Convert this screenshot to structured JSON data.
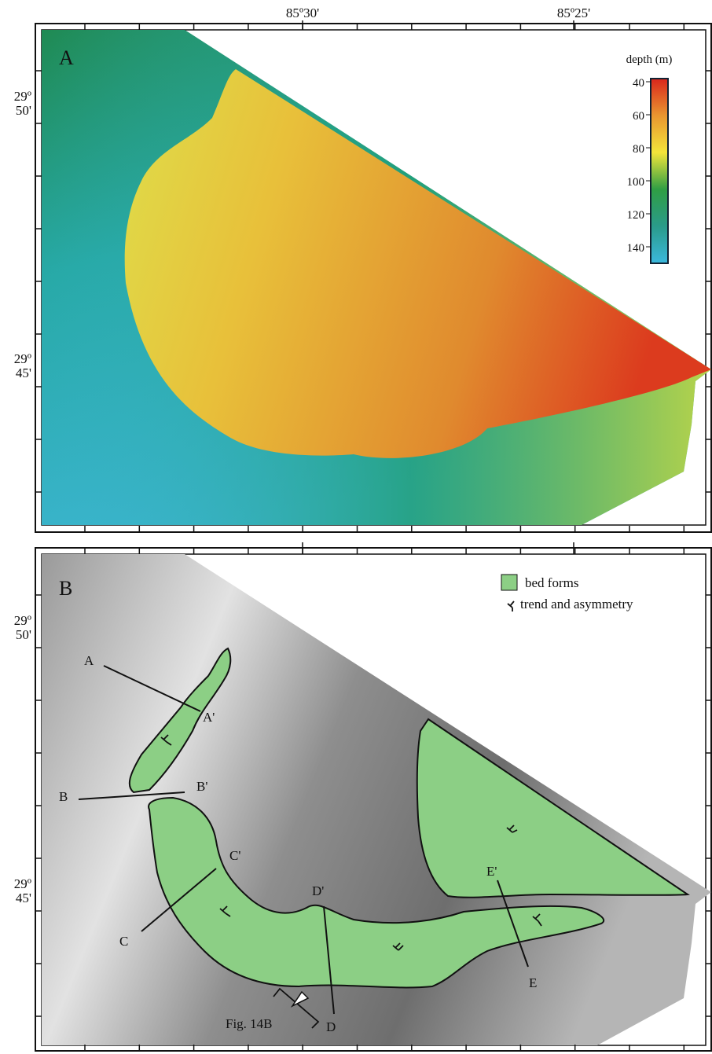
{
  "longitude_labels": [
    "85º30'",
    "85º25'"
  ],
  "latitude_labels": [
    {
      "deg": "29º",
      "min": "50'"
    },
    {
      "deg": "29º",
      "min": "45'"
    }
  ],
  "panel_a": {
    "label": "A",
    "colorbar": {
      "title": "depth (m)",
      "ticks": [
        40,
        60,
        80,
        100,
        120,
        140
      ]
    }
  },
  "panel_b": {
    "label": "B",
    "legend": [
      "bed forms",
      "trend and asymmetry"
    ],
    "profiles": [
      [
        "A",
        "A'"
      ],
      [
        "B",
        "B'"
      ],
      [
        "C",
        "C'"
      ],
      [
        "D",
        "D'"
      ],
      [
        "E",
        "E'"
      ]
    ],
    "callout": "Fig. 14B"
  }
}
